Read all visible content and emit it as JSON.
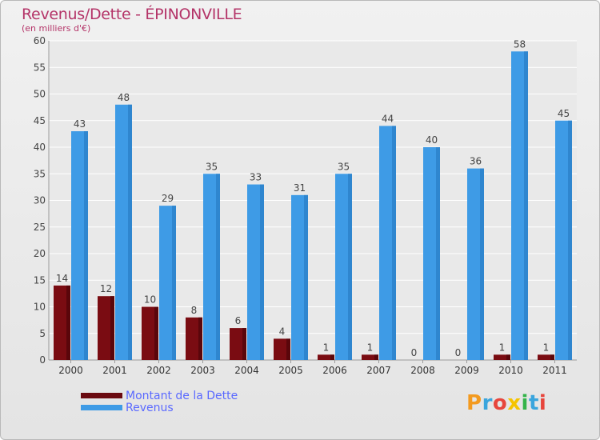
{
  "header": {
    "title": "Revenus/Dette - ÉPINONVILLE",
    "subtitle": "(en milliers d'€)"
  },
  "chart_data": {
    "type": "bar",
    "categories": [
      "2000",
      "2001",
      "2002",
      "2003",
      "2004",
      "2005",
      "2006",
      "2007",
      "2008",
      "2009",
      "2010",
      "2011"
    ],
    "series": [
      {
        "name": "Montant de la Dette",
        "color": "#7a0c12",
        "values": [
          14,
          12,
          10,
          8,
          6,
          4,
          1,
          1,
          0,
          0,
          1,
          1
        ]
      },
      {
        "name": "Revenus",
        "color": "#3e9be6",
        "values": [
          43,
          48,
          29,
          35,
          33,
          31,
          35,
          44,
          40,
          36,
          58,
          45
        ]
      }
    ],
    "ylim": [
      0,
      60
    ],
    "yticks": [
      0,
      5,
      10,
      15,
      20,
      25,
      30,
      35,
      40,
      45,
      50,
      55,
      60
    ],
    "grid": true,
    "legend": "bottom-left"
  },
  "legend": {
    "items": [
      {
        "label": "Montant de la Dette",
        "color": "#6a0a10"
      },
      {
        "label": "Revenus",
        "color": "#3e9be6"
      }
    ]
  },
  "logo": {
    "letters": [
      {
        "ch": "P",
        "color": "#f39a1f"
      },
      {
        "ch": "r",
        "color": "#3aa5dd"
      },
      {
        "ch": "o",
        "color": "#e7453c"
      },
      {
        "ch": "x",
        "color": "#f5c400"
      },
      {
        "ch": "i",
        "color": "#34b44a"
      },
      {
        "ch": "t",
        "color": "#3aa5dd"
      },
      {
        "ch": "i",
        "color": "#e7453c"
      }
    ]
  }
}
